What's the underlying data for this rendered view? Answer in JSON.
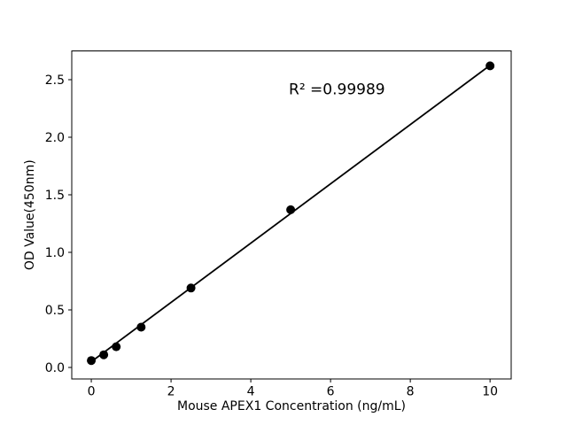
{
  "chart_data": {
    "type": "scatter",
    "title": "",
    "xlabel": "Mouse APEX1 Concentration (ng/mL)",
    "ylabel": "OD Value(450nm)",
    "annotation": {
      "text": "R² =0.99989",
      "x": 6.16,
      "y": 2.42
    },
    "r_squared": 0.99989,
    "points": [
      {
        "x": 0,
        "y": 0.06
      },
      {
        "x": 0.3125,
        "y": 0.11
      },
      {
        "x": 0.625,
        "y": 0.18
      },
      {
        "x": 1.25,
        "y": 0.35
      },
      {
        "x": 2.5,
        "y": 0.69
      },
      {
        "x": 5,
        "y": 1.37
      },
      {
        "x": 10,
        "y": 2.62
      }
    ],
    "fit_line": {
      "x1": 0,
      "y1": 0.05,
      "x2": 10,
      "y2": 2.625
    },
    "xlim": [
      -0.49,
      10.53
    ],
    "ylim": [
      -0.1,
      2.75
    ],
    "xticks": [
      0,
      2,
      4,
      6,
      8,
      10
    ],
    "xtick_labels": [
      "0",
      "2",
      "4",
      "6",
      "8",
      "10"
    ],
    "yticks": [
      0,
      0.5,
      1.0,
      1.5,
      2.0,
      2.5
    ],
    "ytick_labels": [
      "0.0",
      "0.5",
      "1.0",
      "1.5",
      "2.0",
      "2.5"
    ],
    "grid": false,
    "legend": null,
    "colors": {
      "line": "#000000",
      "marker": "#000000",
      "text": "#000000",
      "background": "#ffffff"
    }
  }
}
